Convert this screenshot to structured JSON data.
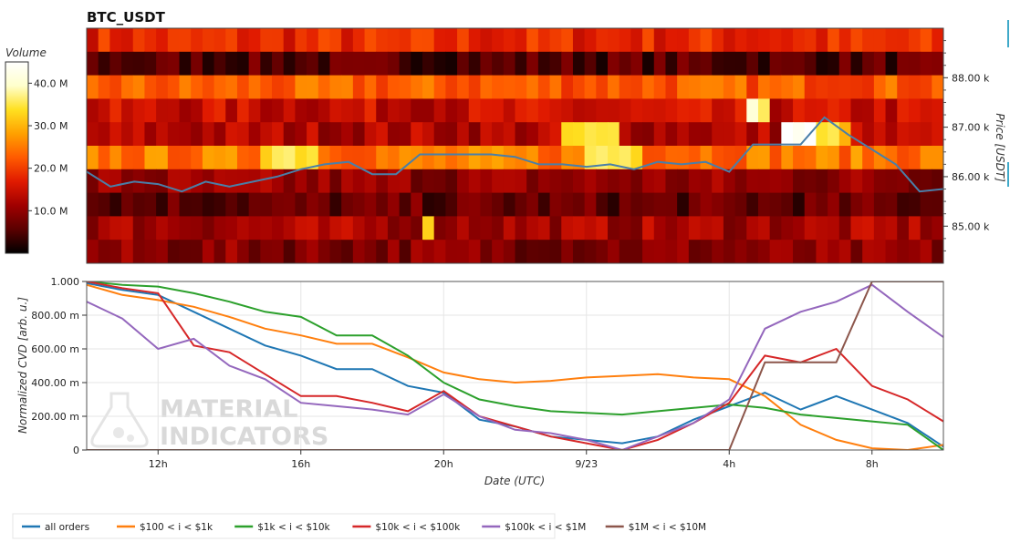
{
  "chart_data": [
    {
      "type": "heatmap",
      "title": "BTC_USDT",
      "ylabel": "Price [USDT]",
      "y_ticks": [
        "85.00 k",
        "86.00 k",
        "87.00 k",
        "88.00 k"
      ],
      "y_tick_values": [
        85000,
        86000,
        87000,
        88000
      ],
      "ylim": [
        84250,
        89000
      ],
      "x_hours_range": [
        10.5,
        28.5
      ],
      "colorbar": {
        "label": "Volume",
        "ticks": [
          "10.0 M",
          "20.0 M",
          "30.0 M",
          "40.0 M"
        ],
        "tick_values": [
          10,
          20,
          30,
          40
        ],
        "range": [
          0,
          45
        ],
        "colors": [
          "#000000",
          "#5a0000",
          "#a00000",
          "#e01a00",
          "#ff5a00",
          "#ffa000",
          "#ffe020",
          "#ffffcc",
          "#ffffff"
        ]
      },
      "price_line": {
        "color": "#4a7fa8",
        "x_hours": [
          10.5,
          11,
          11.5,
          12,
          12.5,
          13,
          13.5,
          14,
          14.5,
          15,
          15.5,
          16,
          16.5,
          17,
          17.5,
          18,
          18.5,
          19,
          19.5,
          20,
          20.5,
          21,
          21.5,
          22,
          22.5,
          23,
          23.5,
          24,
          24.5,
          25,
          25.5,
          26,
          26.5,
          27,
          27.5,
          28,
          28.5
        ],
        "y": [
          86100,
          85800,
          85900,
          85850,
          85700,
          85900,
          85800,
          85900,
          86000,
          86150,
          86250,
          86300,
          86050,
          86050,
          86450,
          86450,
          86450,
          86450,
          86400,
          86250,
          86250,
          86200,
          86250,
          86150,
          86300,
          86250,
          86300,
          86100,
          86650,
          86650,
          86650,
          87200,
          86850,
          86550,
          86250,
          85700,
          85750
        ]
      }
    },
    {
      "type": "line",
      "xlabel": "Date (UTC)",
      "ylabel": "Normalized CVD [arb. u.]",
      "x_ticks": [
        "12h",
        "16h",
        "20h",
        "9/23",
        "4h",
        "8h"
      ],
      "x_tick_hours": [
        12,
        16,
        20,
        24,
        28,
        32
      ],
      "xlim": [
        10,
        34
      ],
      "y_ticks": [
        "0",
        "200.00 m",
        "400.00 m",
        "600.00 m",
        "800.00 m",
        "1.000"
      ],
      "y_tick_values": [
        0,
        0.2,
        0.4,
        0.6,
        0.8,
        1.0
      ],
      "ylim": [
        0,
        1.0
      ],
      "grid": true,
      "legend_position": "bottom",
      "x": [
        10,
        11,
        12,
        13,
        14,
        15,
        16,
        17,
        18,
        19,
        20,
        21,
        22,
        23,
        24,
        25,
        26,
        27,
        28,
        29,
        30,
        31,
        32,
        33,
        34
      ],
      "series": [
        {
          "name": "all orders",
          "color": "#1f77b4",
          "values": [
            0.99,
            0.95,
            0.92,
            0.82,
            0.72,
            0.62,
            0.56,
            0.48,
            0.48,
            0.38,
            0.34,
            0.18,
            0.14,
            0.08,
            0.06,
            0.04,
            0.08,
            0.18,
            0.26,
            0.34,
            0.24,
            0.32,
            0.24,
            0.16,
            0.02
          ]
        },
        {
          "name": "$100 < i < $1k",
          "color": "#ff7f0e",
          "values": [
            0.98,
            0.92,
            0.89,
            0.85,
            0.79,
            0.72,
            0.68,
            0.63,
            0.63,
            0.55,
            0.46,
            0.42,
            0.4,
            0.41,
            0.43,
            0.44,
            0.45,
            0.43,
            0.42,
            0.32,
            0.15,
            0.06,
            0.01,
            0.0,
            0.03
          ]
        },
        {
          "name": "$1k < i < $10k",
          "color": "#2ca02c",
          "values": [
            1.0,
            0.98,
            0.97,
            0.93,
            0.88,
            0.82,
            0.79,
            0.68,
            0.68,
            0.56,
            0.4,
            0.3,
            0.26,
            0.23,
            0.22,
            0.21,
            0.23,
            0.25,
            0.27,
            0.25,
            0.21,
            0.19,
            0.17,
            0.15,
            0.0
          ]
        },
        {
          "name": "$10k < i < $100k",
          "color": "#d62728",
          "values": [
            1.0,
            0.96,
            0.93,
            0.62,
            0.58,
            0.45,
            0.32,
            0.32,
            0.28,
            0.23,
            0.35,
            0.2,
            0.14,
            0.08,
            0.04,
            0.0,
            0.06,
            0.16,
            0.28,
            0.56,
            0.52,
            0.6,
            0.38,
            0.3,
            0.17
          ]
        },
        {
          "name": "$100k < i < $1M",
          "color": "#9467bd",
          "values": [
            0.88,
            0.78,
            0.6,
            0.66,
            0.5,
            0.42,
            0.28,
            0.26,
            0.24,
            0.21,
            0.33,
            0.2,
            0.12,
            0.1,
            0.06,
            0.0,
            0.08,
            0.16,
            0.3,
            0.72,
            0.82,
            0.88,
            0.98,
            0.82,
            0.67
          ]
        },
        {
          "name": "$1M < i < $10M",
          "color": "#8c564b",
          "values": [
            0,
            0,
            0,
            0,
            0,
            0,
            0,
            0,
            0,
            0,
            0,
            0,
            0,
            0,
            0,
            0,
            0,
            0,
            0,
            0.52,
            0.52,
            0.52,
            1.0,
            1.0,
            1.0
          ]
        }
      ]
    }
  ],
  "watermark": {
    "line1": "MATERIAL",
    "line2": "INDICATORS"
  }
}
